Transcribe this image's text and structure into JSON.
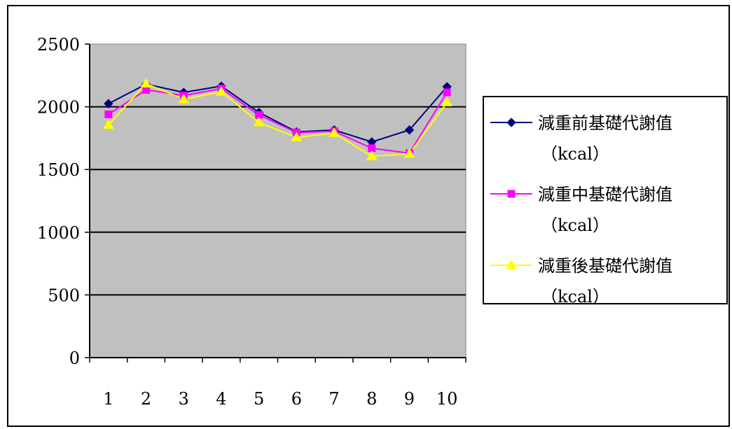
{
  "chart_data": {
    "type": "line",
    "categories": [
      "1",
      "2",
      "3",
      "4",
      "5",
      "6",
      "7",
      "8",
      "9",
      "10"
    ],
    "ylim": [
      0,
      2500
    ],
    "yticks": [
      "0",
      "500",
      "1000",
      "1500",
      "2000",
      "2500"
    ],
    "grid": true,
    "legend_position": "right",
    "plot_background": "#c0c0c0",
    "series": [
      {
        "name": "減重前基礎代謝值（kcal）",
        "legend_lines": [
          "減重前基礎代謝值",
          "（kcal）"
        ],
        "color": "#000080",
        "marker": "diamond",
        "values": [
          2025,
          2180,
          2115,
          2165,
          1955,
          1800,
          1815,
          1720,
          1815,
          2160
        ]
      },
      {
        "name": "減重中基礎代謝值（kcal）",
        "legend_lines": [
          "減重中基礎代謝值",
          "（kcal）"
        ],
        "color": "#ff00ff",
        "marker": "square",
        "values": [
          1940,
          2135,
          2090,
          2145,
          1935,
          1795,
          1805,
          1670,
          1630,
          2115
        ]
      },
      {
        "name": "減重後基礎代謝值（kcal）",
        "legend_lines": [
          "減重後基礎代謝值",
          "（kcal）"
        ],
        "color": "#ffff00",
        "marker": "triangle",
        "values": [
          1855,
          2185,
          2060,
          2120,
          1875,
          1755,
          1790,
          1605,
          1625,
          2035
        ]
      }
    ]
  }
}
